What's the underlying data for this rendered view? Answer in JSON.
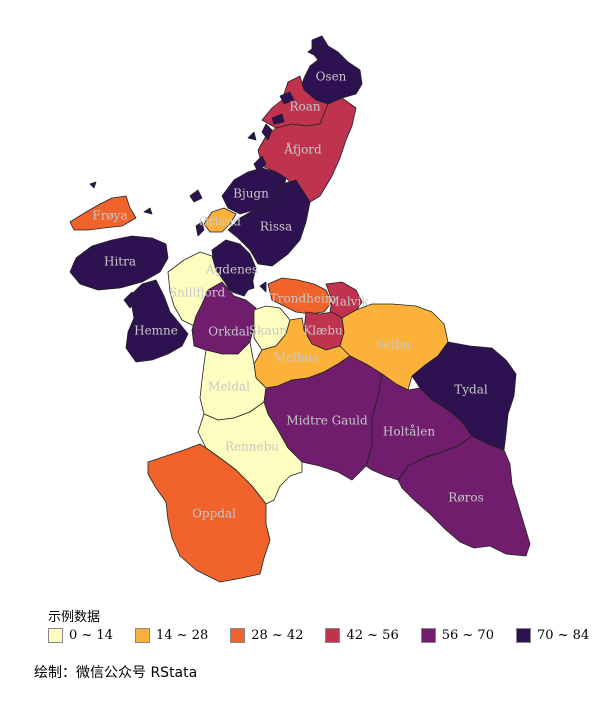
{
  "map": {
    "regions": [
      {
        "name": "Osen",
        "class": 5
      },
      {
        "name": "Roan",
        "class": 3
      },
      {
        "name": "Åfjord",
        "class": 3
      },
      {
        "name": "Bjugn",
        "class": 5
      },
      {
        "name": "Frøya",
        "class": 2
      },
      {
        "name": "Ørland",
        "class": 1
      },
      {
        "name": "Rissa",
        "class": 5
      },
      {
        "name": "Hitra",
        "class": 5
      },
      {
        "name": "Agdenes",
        "class": 5
      },
      {
        "name": "Snillfjord",
        "class": 0
      },
      {
        "name": "Trondheim",
        "class": 2
      },
      {
        "name": "Malvik",
        "class": 3
      },
      {
        "name": "Hemne",
        "class": 5
      },
      {
        "name": "Orkdal",
        "class": 4
      },
      {
        "name": "Skaun",
        "class": 0
      },
      {
        "name": "Klæbu",
        "class": 3
      },
      {
        "name": "Selbu",
        "class": 1
      },
      {
        "name": "Melhus",
        "class": 1
      },
      {
        "name": "Tydal",
        "class": 5
      },
      {
        "name": "Meldal",
        "class": 0
      },
      {
        "name": "Midtre Gauld",
        "class": 4
      },
      {
        "name": "Holtålen",
        "class": 4
      },
      {
        "name": "Rennebu",
        "class": 0
      },
      {
        "name": "Røros",
        "class": 4
      },
      {
        "name": "Oppdal",
        "class": 2
      }
    ]
  },
  "legend": {
    "title": "示例数据",
    "items": [
      {
        "label": "0 ~ 14",
        "color": "#fcfdbf"
      },
      {
        "label": "14 ~ 28",
        "color": "#fbb13a"
      },
      {
        "label": "28 ~ 42",
        "color": "#f0632a"
      },
      {
        "label": "42 ~ 56",
        "color": "#c0334f"
      },
      {
        "label": "56 ~ 70",
        "color": "#701d6d"
      },
      {
        "label": "70 ~ 84",
        "color": "#2d1150"
      }
    ]
  },
  "caption": "绘制：微信公众号 RStata"
}
